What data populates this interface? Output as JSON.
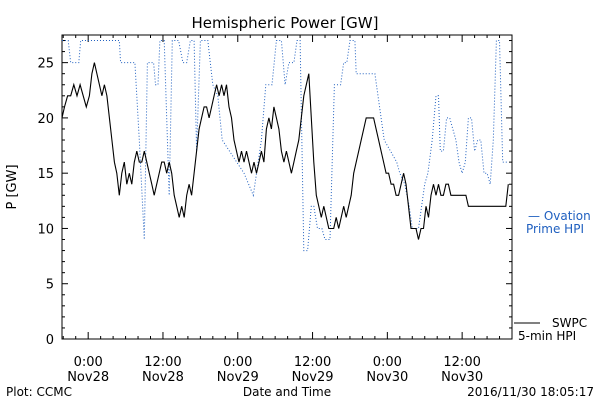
{
  "chart_data": {
    "type": "line",
    "title": "Hemispheric Power [GW]",
    "ylabel": "P [GW]",
    "xlabel": "Date and Time",
    "ylim": [
      0,
      27.5
    ],
    "xlim": [
      -4.2,
      68
    ],
    "yticks": [
      0,
      5,
      10,
      15,
      20,
      25
    ],
    "xticks": [
      {
        "x": 0,
        "time": "0:00",
        "date": "Nov28"
      },
      {
        "x": 12,
        "time": "12:00",
        "date": "Nov28"
      },
      {
        "x": 24,
        "time": "0:00",
        "date": "Nov29"
      },
      {
        "x": 36,
        "time": "12:00",
        "date": "Nov29"
      },
      {
        "x": 48,
        "time": "0:00",
        "date": "Nov30"
      },
      {
        "x": 60,
        "time": "12:00",
        "date": "Nov30"
      }
    ],
    "series": [
      {
        "name": "SWPC 5-min HPI",
        "style": "solid",
        "color": "#000000",
        "points": [
          [
            -4.2,
            20
          ],
          [
            -3.8,
            21
          ],
          [
            -3.3,
            22
          ],
          [
            -2.8,
            22
          ],
          [
            -2.3,
            23
          ],
          [
            -1.8,
            22
          ],
          [
            -1.3,
            23
          ],
          [
            -0.8,
            22
          ],
          [
            -0.3,
            21
          ],
          [
            0.2,
            22
          ],
          [
            0.6,
            24
          ],
          [
            1.0,
            25
          ],
          [
            1.4,
            24
          ],
          [
            1.8,
            23
          ],
          [
            2.2,
            22
          ],
          [
            2.6,
            23
          ],
          [
            3.0,
            22
          ],
          [
            3.4,
            20
          ],
          [
            3.8,
            18
          ],
          [
            4.2,
            16
          ],
          [
            4.6,
            15
          ],
          [
            5.0,
            13
          ],
          [
            5.4,
            15
          ],
          [
            5.8,
            16
          ],
          [
            6.2,
            14
          ],
          [
            6.6,
            15
          ],
          [
            7.0,
            14
          ],
          [
            7.4,
            16
          ],
          [
            7.8,
            17
          ],
          [
            8.2,
            16
          ],
          [
            8.6,
            16
          ],
          [
            9.0,
            17
          ],
          [
            9.4,
            16
          ],
          [
            9.8,
            15
          ],
          [
            10.2,
            14
          ],
          [
            10.6,
            13
          ],
          [
            11.0,
            14
          ],
          [
            11.4,
            15
          ],
          [
            11.8,
            16
          ],
          [
            12.2,
            16
          ],
          [
            12.6,
            15
          ],
          [
            13.0,
            16
          ],
          [
            13.4,
            15
          ],
          [
            13.8,
            13
          ],
          [
            14.2,
            12
          ],
          [
            14.6,
            11
          ],
          [
            15.0,
            12
          ],
          [
            15.4,
            11
          ],
          [
            15.8,
            13
          ],
          [
            16.2,
            14
          ],
          [
            16.6,
            13
          ],
          [
            17.0,
            15
          ],
          [
            17.4,
            17
          ],
          [
            17.8,
            19
          ],
          [
            18.2,
            20
          ],
          [
            18.6,
            21
          ],
          [
            19.0,
            21
          ],
          [
            19.4,
            20
          ],
          [
            19.8,
            21
          ],
          [
            20.2,
            22
          ],
          [
            20.6,
            23
          ],
          [
            21.0,
            22
          ],
          [
            21.4,
            23
          ],
          [
            21.8,
            22
          ],
          [
            22.2,
            23
          ],
          [
            22.6,
            21
          ],
          [
            23.0,
            20
          ],
          [
            23.4,
            18
          ],
          [
            23.8,
            17
          ],
          [
            24.2,
            16
          ],
          [
            24.6,
            17
          ],
          [
            25.0,
            16
          ],
          [
            25.4,
            17
          ],
          [
            25.8,
            16
          ],
          [
            26.2,
            15
          ],
          [
            26.6,
            16
          ],
          [
            27.0,
            15
          ],
          [
            27.4,
            16
          ],
          [
            27.8,
            17
          ],
          [
            28.2,
            16
          ],
          [
            28.6,
            19
          ],
          [
            29.0,
            20
          ],
          [
            29.4,
            19
          ],
          [
            29.8,
            21
          ],
          [
            30.2,
            20
          ],
          [
            30.6,
            19
          ],
          [
            31.0,
            17
          ],
          [
            31.4,
            16
          ],
          [
            31.8,
            17
          ],
          [
            32.2,
            16
          ],
          [
            32.6,
            15
          ],
          [
            33.0,
            16
          ],
          [
            33.4,
            17
          ],
          [
            33.8,
            18
          ],
          [
            34.2,
            20
          ],
          [
            34.6,
            22
          ],
          [
            35.0,
            23
          ],
          [
            35.4,
            24
          ],
          [
            35.8,
            20
          ],
          [
            36.2,
            16
          ],
          [
            36.6,
            13
          ],
          [
            37.0,
            12
          ],
          [
            37.4,
            11
          ],
          [
            37.8,
            12
          ],
          [
            38.2,
            11
          ],
          [
            38.6,
            10
          ],
          [
            39.0,
            10
          ],
          [
            39.4,
            10
          ],
          [
            39.8,
            11
          ],
          [
            40.2,
            10
          ],
          [
            40.6,
            11
          ],
          [
            41.0,
            12
          ],
          [
            41.4,
            11
          ],
          [
            41.8,
            12
          ],
          [
            42.2,
            13
          ],
          [
            42.6,
            15
          ],
          [
            43.0,
            16
          ],
          [
            43.4,
            17
          ],
          [
            43.8,
            18
          ],
          [
            44.2,
            19
          ],
          [
            44.6,
            20
          ],
          [
            45.0,
            20
          ],
          [
            45.4,
            20
          ],
          [
            45.8,
            20
          ],
          [
            46.2,
            19
          ],
          [
            46.6,
            18
          ],
          [
            47.0,
            17
          ],
          [
            47.4,
            16
          ],
          [
            47.8,
            15
          ],
          [
            48.2,
            15
          ],
          [
            48.6,
            14
          ],
          [
            49.0,
            14
          ],
          [
            49.4,
            13
          ],
          [
            49.8,
            13
          ],
          [
            50.2,
            14
          ],
          [
            50.6,
            15
          ],
          [
            51.0,
            14
          ],
          [
            51.4,
            12
          ],
          [
            51.8,
            10
          ],
          [
            52.2,
            10
          ],
          [
            52.6,
            10
          ],
          [
            53.0,
            9
          ],
          [
            53.4,
            10
          ],
          [
            53.8,
            10
          ],
          [
            54.2,
            12
          ],
          [
            54.6,
            11
          ],
          [
            55.0,
            13
          ],
          [
            55.4,
            14
          ],
          [
            55.8,
            13
          ],
          [
            56.2,
            14
          ],
          [
            56.6,
            13
          ],
          [
            57.0,
            13
          ],
          [
            57.4,
            14
          ],
          [
            57.8,
            14
          ],
          [
            58.2,
            13
          ],
          [
            58.6,
            13
          ],
          [
            59.0,
            13
          ],
          [
            59.4,
            13
          ],
          [
            59.8,
            13
          ],
          [
            60.2,
            13
          ],
          [
            60.6,
            13
          ],
          [
            61.0,
            12
          ],
          [
            61.4,
            12
          ],
          [
            61.8,
            12
          ],
          [
            62.2,
            12
          ],
          [
            62.6,
            12
          ],
          [
            63.0,
            12
          ],
          [
            63.4,
            12
          ],
          [
            63.8,
            12
          ],
          [
            64.2,
            12
          ],
          [
            64.6,
            12
          ],
          [
            65.0,
            12
          ],
          [
            65.4,
            12
          ],
          [
            65.8,
            12
          ],
          [
            66.2,
            12
          ],
          [
            66.6,
            12
          ],
          [
            67.0,
            12
          ],
          [
            67.4,
            14
          ]
        ]
      },
      {
        "name": "Ovation Prime HPI",
        "style": "dotted",
        "color": "#2060c0",
        "points": [
          [
            -4.2,
            27
          ],
          [
            -3.2,
            27
          ],
          [
            -2.8,
            25
          ],
          [
            -1.5,
            25
          ],
          [
            -1.2,
            27
          ],
          [
            1.0,
            27
          ],
          [
            5.0,
            27
          ],
          [
            5.2,
            25
          ],
          [
            7.5,
            25
          ],
          [
            8.2,
            18
          ],
          [
            9.0,
            9
          ],
          [
            9.5,
            25
          ],
          [
            10.5,
            25
          ],
          [
            10.8,
            23
          ],
          [
            11.2,
            23
          ],
          [
            11.5,
            27
          ],
          [
            12.2,
            27
          ],
          [
            13.0,
            13
          ],
          [
            13.5,
            27
          ],
          [
            14.5,
            27
          ],
          [
            15.2,
            25
          ],
          [
            15.8,
            25
          ],
          [
            16.4,
            27
          ],
          [
            17.0,
            27
          ],
          [
            17.4,
            17
          ],
          [
            18.0,
            27
          ],
          [
            19.2,
            27
          ],
          [
            20.0,
            23
          ],
          [
            20.8,
            22
          ],
          [
            21.5,
            18
          ],
          [
            25.0,
            15
          ],
          [
            26.5,
            13
          ],
          [
            27.8,
            18
          ],
          [
            28.5,
            23
          ],
          [
            29.5,
            23
          ],
          [
            30.2,
            27
          ],
          [
            31.0,
            27
          ],
          [
            31.6,
            23
          ],
          [
            32.2,
            25
          ],
          [
            33.0,
            25
          ],
          [
            33.5,
            27
          ],
          [
            34.0,
            27
          ],
          [
            34.6,
            8
          ],
          [
            35.2,
            8
          ],
          [
            35.8,
            12
          ],
          [
            36.2,
            12
          ],
          [
            36.8,
            10
          ],
          [
            37.5,
            10
          ],
          [
            38.0,
            9
          ],
          [
            38.8,
            9
          ],
          [
            39.5,
            23
          ],
          [
            40.5,
            23
          ],
          [
            41.0,
            25
          ],
          [
            41.5,
            25
          ],
          [
            42.0,
            27
          ],
          [
            42.8,
            27
          ],
          [
            43.0,
            24
          ],
          [
            46.0,
            24
          ],
          [
            47.5,
            18
          ],
          [
            48.5,
            17
          ],
          [
            49.5,
            16
          ],
          [
            50.0,
            15
          ],
          [
            50.8,
            14
          ],
          [
            51.5,
            12
          ],
          [
            52.0,
            10
          ],
          [
            53.0,
            10
          ],
          [
            53.5,
            12
          ],
          [
            54.0,
            14
          ],
          [
            54.5,
            15
          ],
          [
            55.2,
            18
          ],
          [
            55.8,
            22
          ],
          [
            56.2,
            22
          ],
          [
            56.5,
            17
          ],
          [
            57.0,
            17
          ],
          [
            57.5,
            20
          ],
          [
            58.0,
            20
          ],
          [
            58.5,
            19
          ],
          [
            59.0,
            18
          ],
          [
            59.5,
            16
          ],
          [
            60.0,
            15
          ],
          [
            60.5,
            16
          ],
          [
            61.0,
            20
          ],
          [
            61.5,
            20
          ],
          [
            62.0,
            17
          ],
          [
            62.5,
            18
          ],
          [
            63.0,
            18
          ],
          [
            63.5,
            15
          ],
          [
            64.0,
            15
          ],
          [
            64.5,
            14
          ],
          [
            65.0,
            18
          ],
          [
            65.5,
            27
          ],
          [
            66.0,
            27
          ],
          [
            66.5,
            16
          ],
          [
            67.0,
            16
          ],
          [
            67.4,
            16
          ]
        ]
      }
    ]
  },
  "legend": {
    "ovation_line1": "— Ovation",
    "ovation_line2": "Prime HPI",
    "swpc_line1": "SWPC",
    "swpc_line2": "5-min HPI"
  },
  "footer": {
    "left": "Plot: CCMC",
    "center": "Date and Time",
    "right": "2016/11/30 18:05:17"
  }
}
